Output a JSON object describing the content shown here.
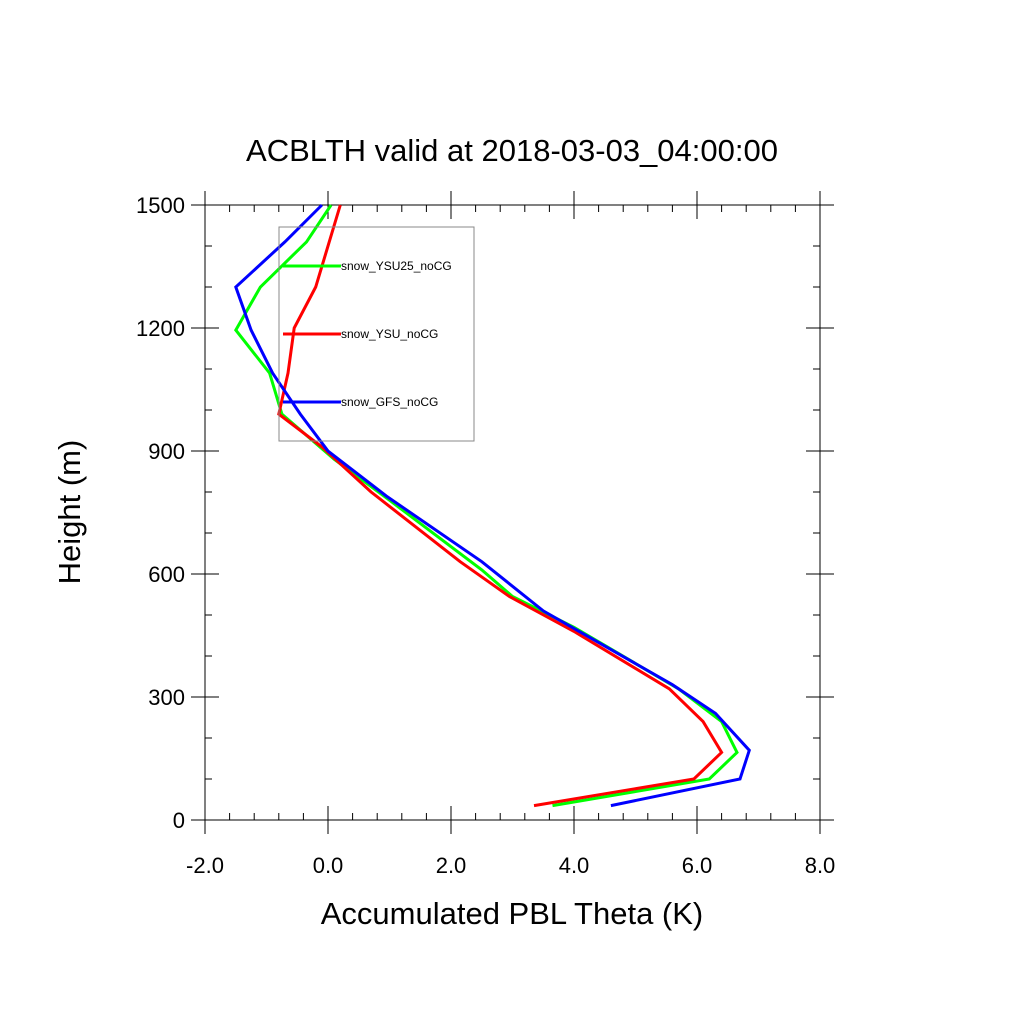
{
  "chart_data": {
    "type": "line",
    "title": "ACBLTH valid at 2018-03-03_04:00:00",
    "xlabel": "Accumulated PBL Theta (K)",
    "ylabel": "Height (m)",
    "xlim": [
      -2.0,
      8.0
    ],
    "ylim": [
      0,
      1500
    ],
    "x_ticks": [
      -2.0,
      0.0,
      2.0,
      4.0,
      6.0,
      8.0
    ],
    "x_tick_labels": [
      "-2.0",
      "0.0",
      "2.0",
      "4.0",
      "6.0",
      "8.0"
    ],
    "y_ticks": [
      0,
      300,
      600,
      900,
      1200,
      1500
    ],
    "y_tick_labels": [
      "0",
      "300",
      "600",
      "900",
      "1200",
      "1500"
    ],
    "grid": false,
    "legend_position": "upper-left",
    "series": [
      {
        "name": "snow_YSU25_noCG",
        "color": "#00ff00",
        "points": [
          [
            3.65,
            35
          ],
          [
            6.2,
            100
          ],
          [
            6.65,
            165
          ],
          [
            6.4,
            240
          ],
          [
            5.7,
            320
          ],
          [
            4.0,
            470
          ],
          [
            3.0,
            545
          ],
          [
            2.5,
            610
          ],
          [
            1.0,
            780
          ],
          [
            0.1,
            880
          ],
          [
            -0.75,
            990
          ],
          [
            -0.95,
            1090
          ],
          [
            -1.5,
            1195
          ],
          [
            -1.1,
            1300
          ],
          [
            -0.35,
            1410
          ],
          [
            0.05,
            1500
          ]
        ]
      },
      {
        "name": "snow_YSU_noCG",
        "color": "#ff0000",
        "points": [
          [
            3.35,
            35
          ],
          [
            5.95,
            100
          ],
          [
            6.4,
            165
          ],
          [
            6.1,
            240
          ],
          [
            5.55,
            320
          ],
          [
            4.0,
            460
          ],
          [
            2.95,
            545
          ],
          [
            2.15,
            630
          ],
          [
            0.7,
            800
          ],
          [
            -0.1,
            910
          ],
          [
            -0.8,
            990
          ],
          [
            -0.65,
            1090
          ],
          [
            -0.55,
            1200
          ],
          [
            -0.2,
            1300
          ],
          [
            0.2,
            1500
          ]
        ]
      },
      {
        "name": "snow_GFS_noCG",
        "color": "#0000ff",
        "points": [
          [
            4.6,
            35
          ],
          [
            6.7,
            100
          ],
          [
            6.85,
            170
          ],
          [
            6.3,
            260
          ],
          [
            5.6,
            330
          ],
          [
            3.5,
            510
          ],
          [
            2.5,
            630
          ],
          [
            0.95,
            790
          ],
          [
            0.0,
            900
          ],
          [
            -0.45,
            990
          ],
          [
            -0.9,
            1090
          ],
          [
            -1.25,
            1195
          ],
          [
            -1.5,
            1300
          ],
          [
            -0.7,
            1410
          ],
          [
            -0.1,
            1500
          ]
        ]
      }
    ]
  }
}
